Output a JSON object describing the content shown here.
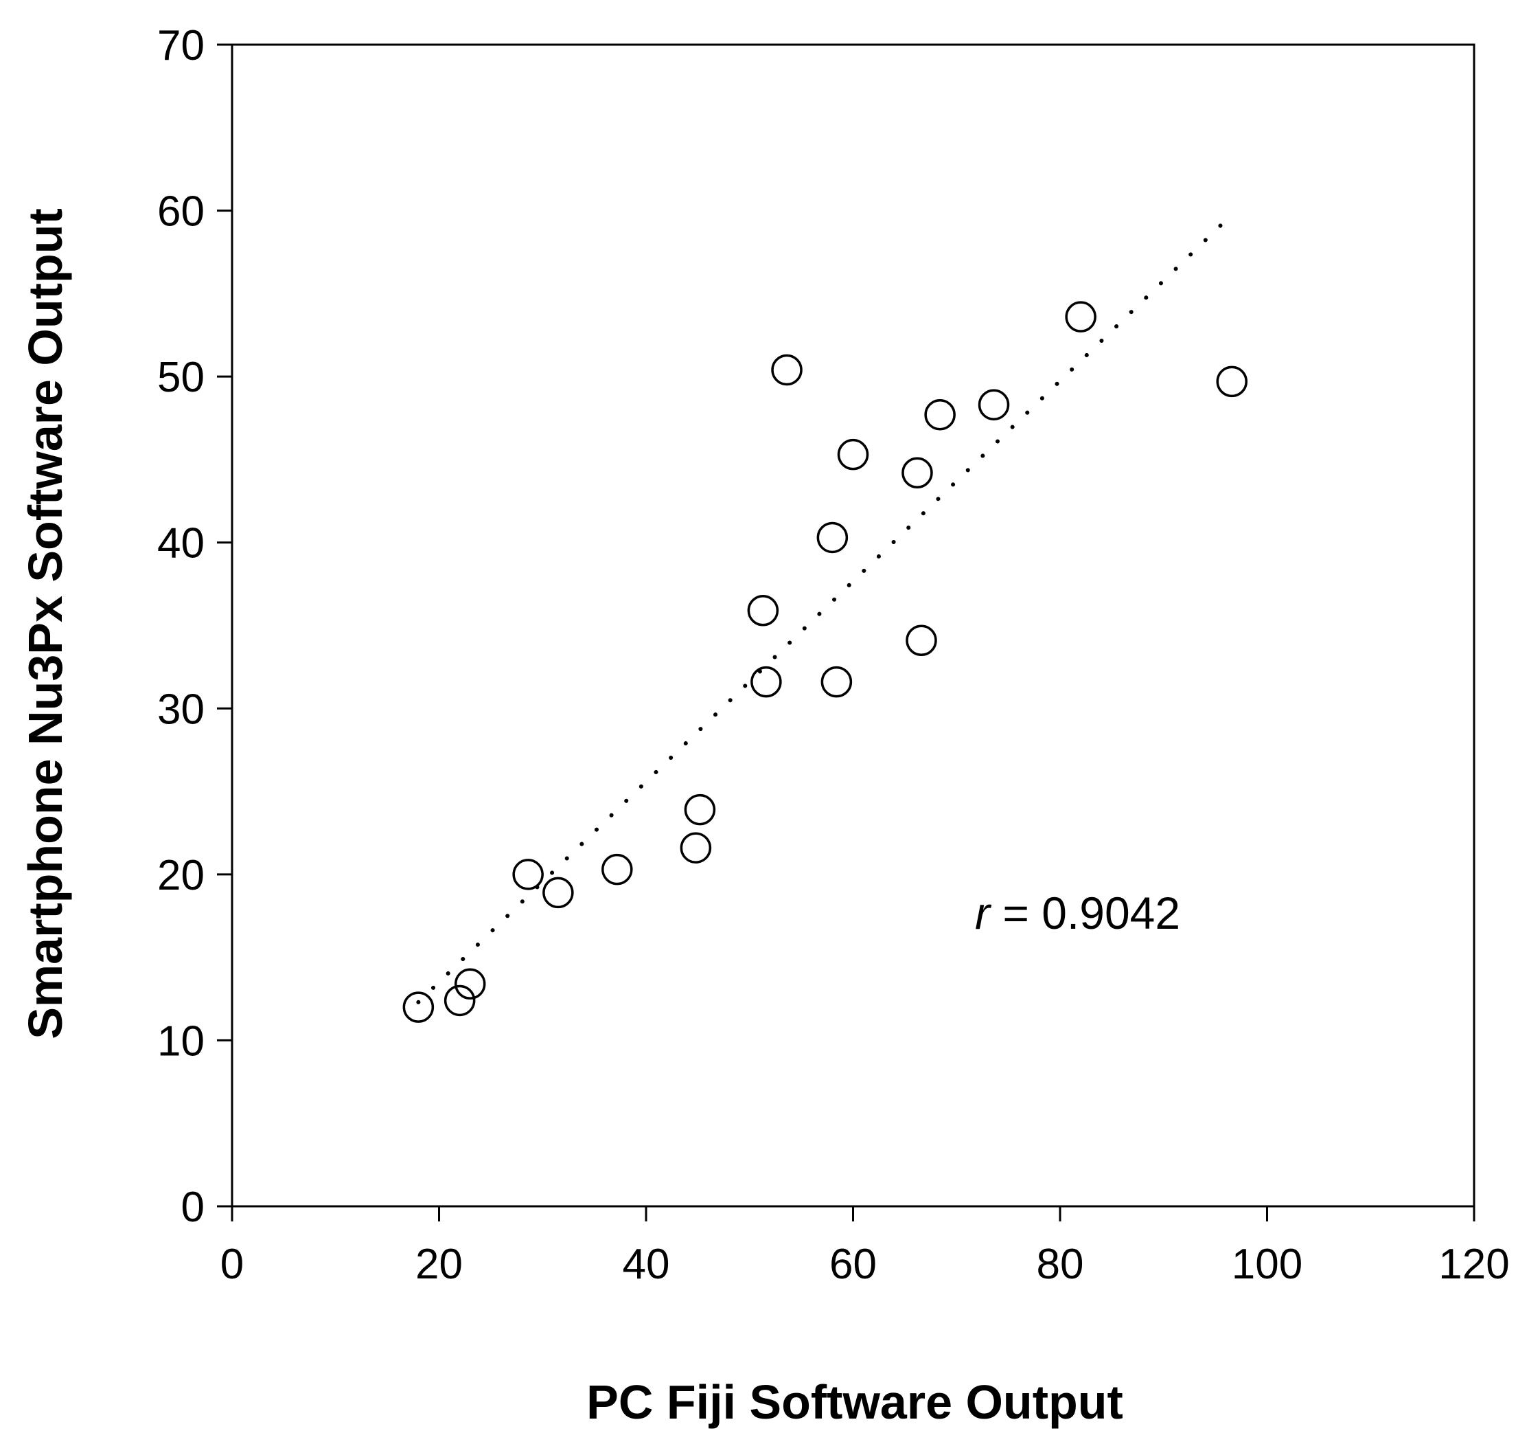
{
  "chart_data": {
    "type": "scatter",
    "title": "",
    "xlabel": "PC Fiji Software Output",
    "ylabel": "Smartphone Nu3Px Software Output",
    "xlim": [
      0,
      120
    ],
    "ylim": [
      0,
      70
    ],
    "xticks": [
      0,
      20,
      40,
      60,
      80,
      100,
      120
    ],
    "yticks": [
      0,
      10,
      20,
      30,
      40,
      50,
      60,
      70
    ],
    "grid": false,
    "legend": "none",
    "marker": "open-circle",
    "trendline": {
      "style": "dotted",
      "x": [
        18,
        96
      ],
      "y": [
        12.3,
        59.4
      ]
    },
    "annotation": {
      "symbol": "r",
      "text": " = 0.9042"
    },
    "series": [
      {
        "x": [
          18.0,
          22.0,
          23.0,
          28.6,
          31.5,
          37.2,
          44.8,
          45.2,
          51.3,
          51.6,
          53.6,
          58.0,
          58.4,
          60.0,
          66.2,
          66.6,
          68.4,
          73.6,
          82.0,
          96.6
        ],
        "y": [
          12.0,
          12.4,
          13.4,
          20.0,
          18.9,
          20.3,
          21.6,
          23.9,
          35.9,
          31.6,
          50.4,
          40.3,
          31.6,
          45.3,
          44.2,
          34.1,
          47.7,
          48.3,
          53.6,
          49.7
        ]
      }
    ]
  }
}
